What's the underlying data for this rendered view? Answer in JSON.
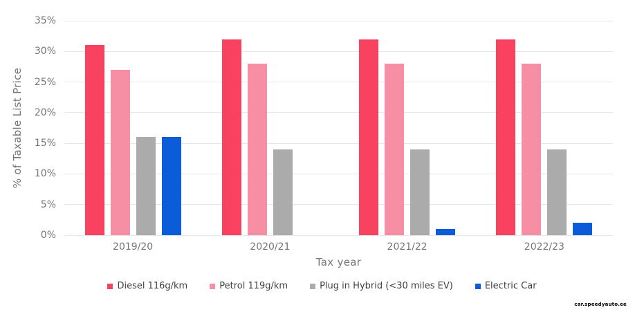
{
  "watermark": {
    "text": "car.speedyauto.ee"
  },
  "colors": {
    "background": "#ffffff",
    "grid": "#e6e6e6",
    "axis_text": "#757575",
    "legend_text": "#3f3f3f",
    "diesel": "#f8425f",
    "petrol": "#f78fa4",
    "hybrid": "#ababab",
    "electric": "#0b5cd9"
  },
  "chart_data": {
    "type": "bar",
    "title": "",
    "xlabel": "Tax year",
    "ylabel": "% of Taxable List Price",
    "categories": [
      "2019/20",
      "2020/21",
      "2021/22",
      "2022/23"
    ],
    "series": [
      {
        "name": "Diesel 116g/km",
        "color": "#f8425f",
        "values": [
          31,
          32,
          32,
          32
        ]
      },
      {
        "name": "Petrol 119g/km",
        "color": "#f78fa4",
        "values": [
          27,
          28,
          28,
          28
        ]
      },
      {
        "name": "Plug in Hybrid (<30 miles EV)",
        "color": "#ababab",
        "values": [
          16,
          14,
          14,
          14
        ]
      },
      {
        "name": "Electric Car",
        "color": "#0b5cd9",
        "values": [
          16,
          0,
          1,
          2
        ]
      }
    ],
    "ylim": [
      0,
      35
    ],
    "ytick_step": 5,
    "ytick_labels": [
      "0%",
      "5%",
      "10%",
      "15%",
      "20%",
      "25%",
      "30%",
      "35%"
    ],
    "grid": true,
    "legend_position": "bottom"
  }
}
